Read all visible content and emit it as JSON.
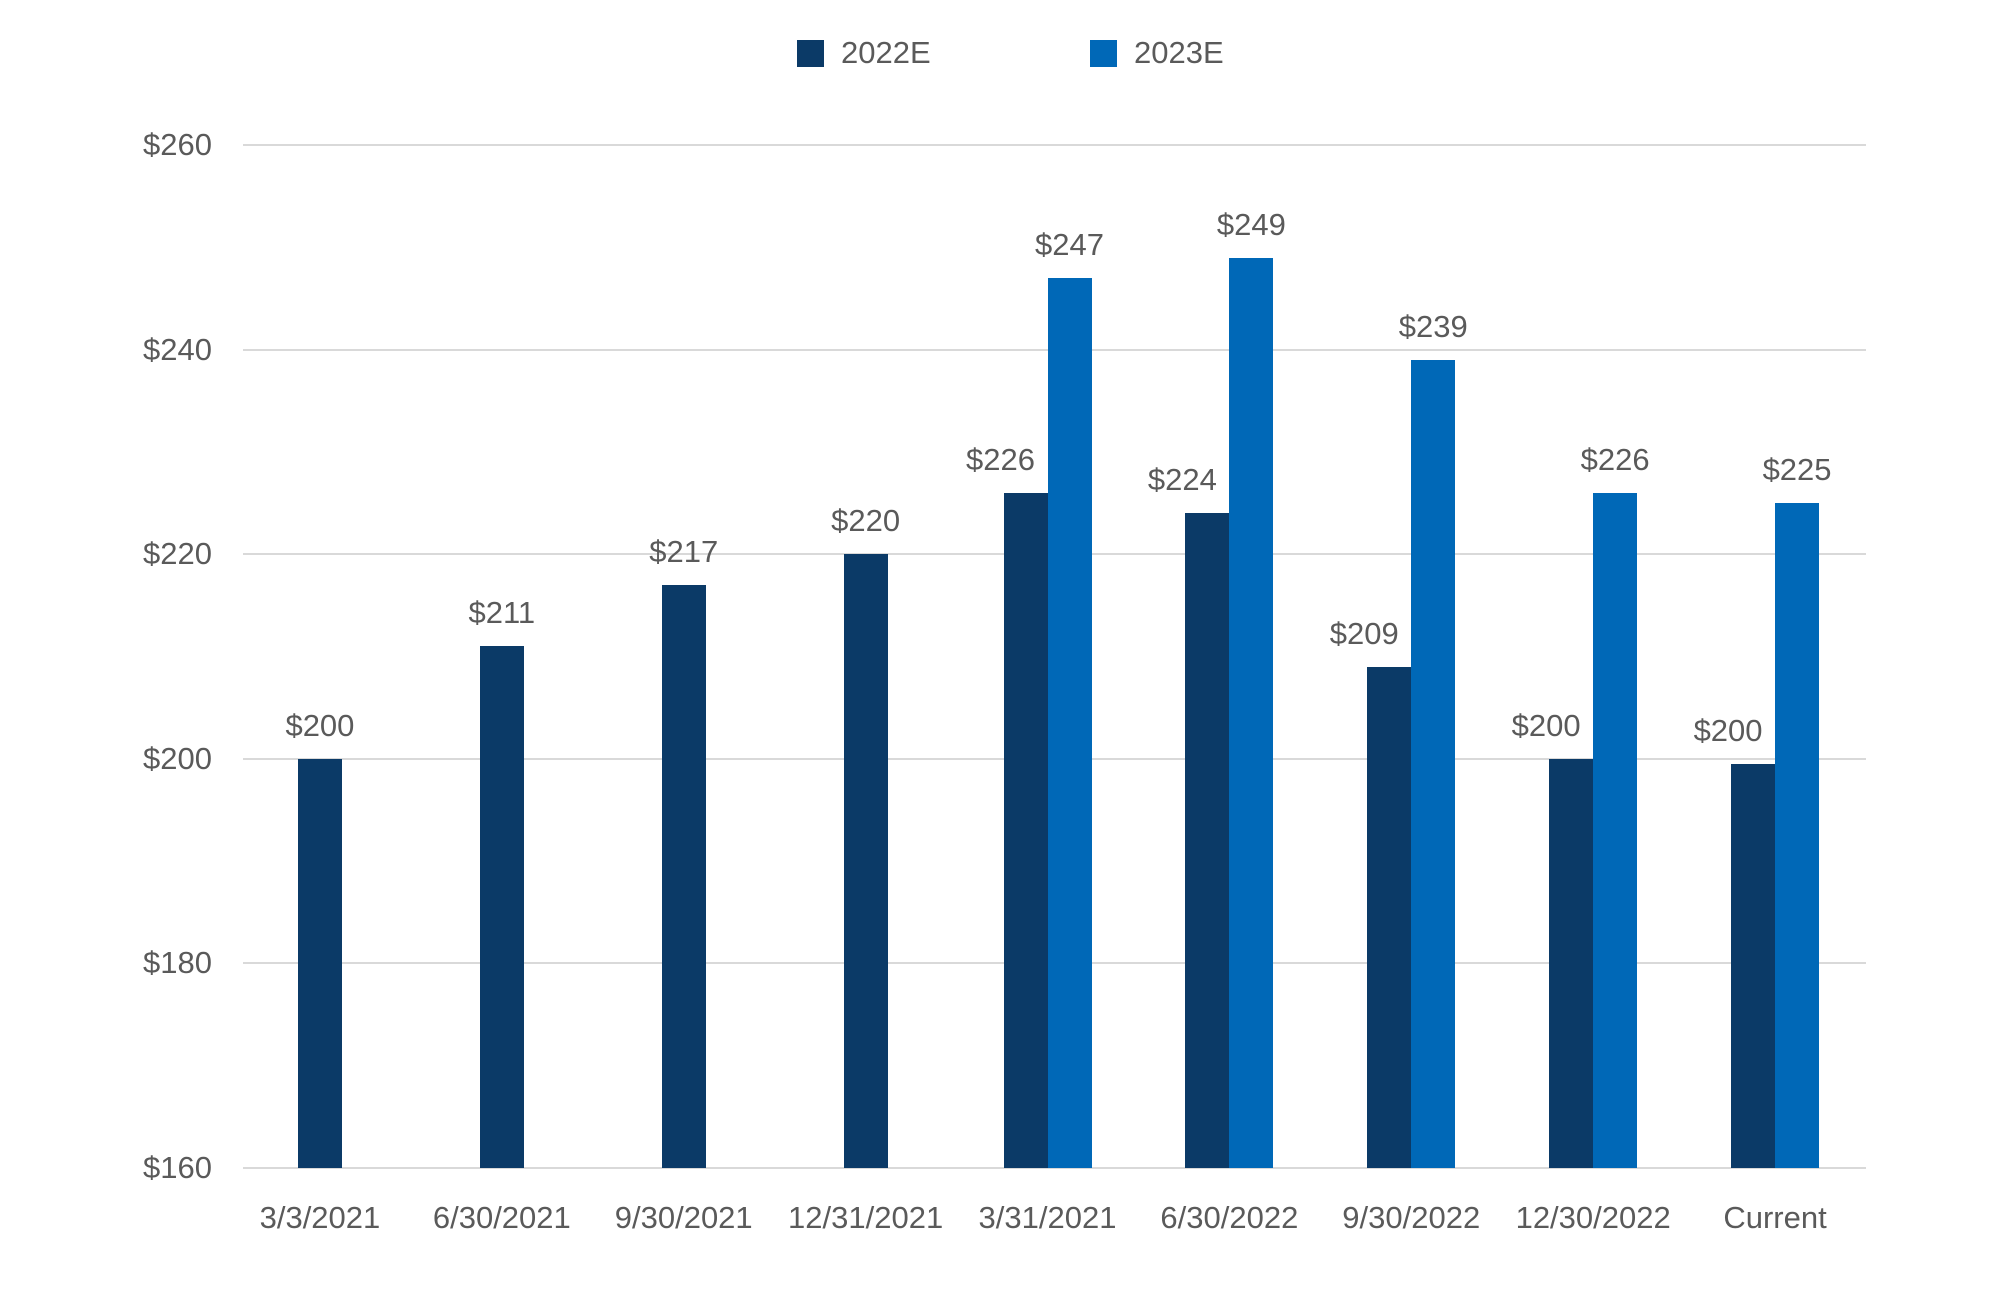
{
  "colors": {
    "series_2022e": "#0b3a67",
    "series_2023e": "#0068b7",
    "gridline": "#d9d9d9",
    "text": "#5a5a5a"
  },
  "y_axis": {
    "tick_labels": [
      "$260",
      "$240",
      "$220",
      "$200",
      "$180",
      "$160"
    ],
    "min": 160,
    "max": 260
  },
  "chart_data": {
    "type": "bar",
    "title": "",
    "xlabel": "",
    "ylabel": "",
    "ylim": [
      160,
      260
    ],
    "grid": true,
    "legend_position": "top",
    "categories": [
      "3/3/2021",
      "6/30/2021",
      "9/30/2021",
      "12/31/2021",
      "3/31/2021",
      "6/30/2022",
      "9/30/2022",
      "12/30/2022",
      "Current"
    ],
    "series": [
      {
        "name": "2022E",
        "color": "#0b3a67",
        "values": [
          200,
          211,
          217,
          220,
          226,
          224,
          209,
          200,
          199.5
        ],
        "labels": [
          "$200",
          "$211",
          "$217",
          "$220",
          "$226",
          "$224",
          "$209",
          "$200",
          "$200"
        ]
      },
      {
        "name": "2023E",
        "color": "#0068b7",
        "values": [
          null,
          null,
          null,
          null,
          247,
          249,
          239,
          226,
          225
        ],
        "labels": [
          null,
          null,
          null,
          null,
          "$247",
          "$249",
          "$239",
          "$226",
          "$225"
        ]
      }
    ]
  }
}
